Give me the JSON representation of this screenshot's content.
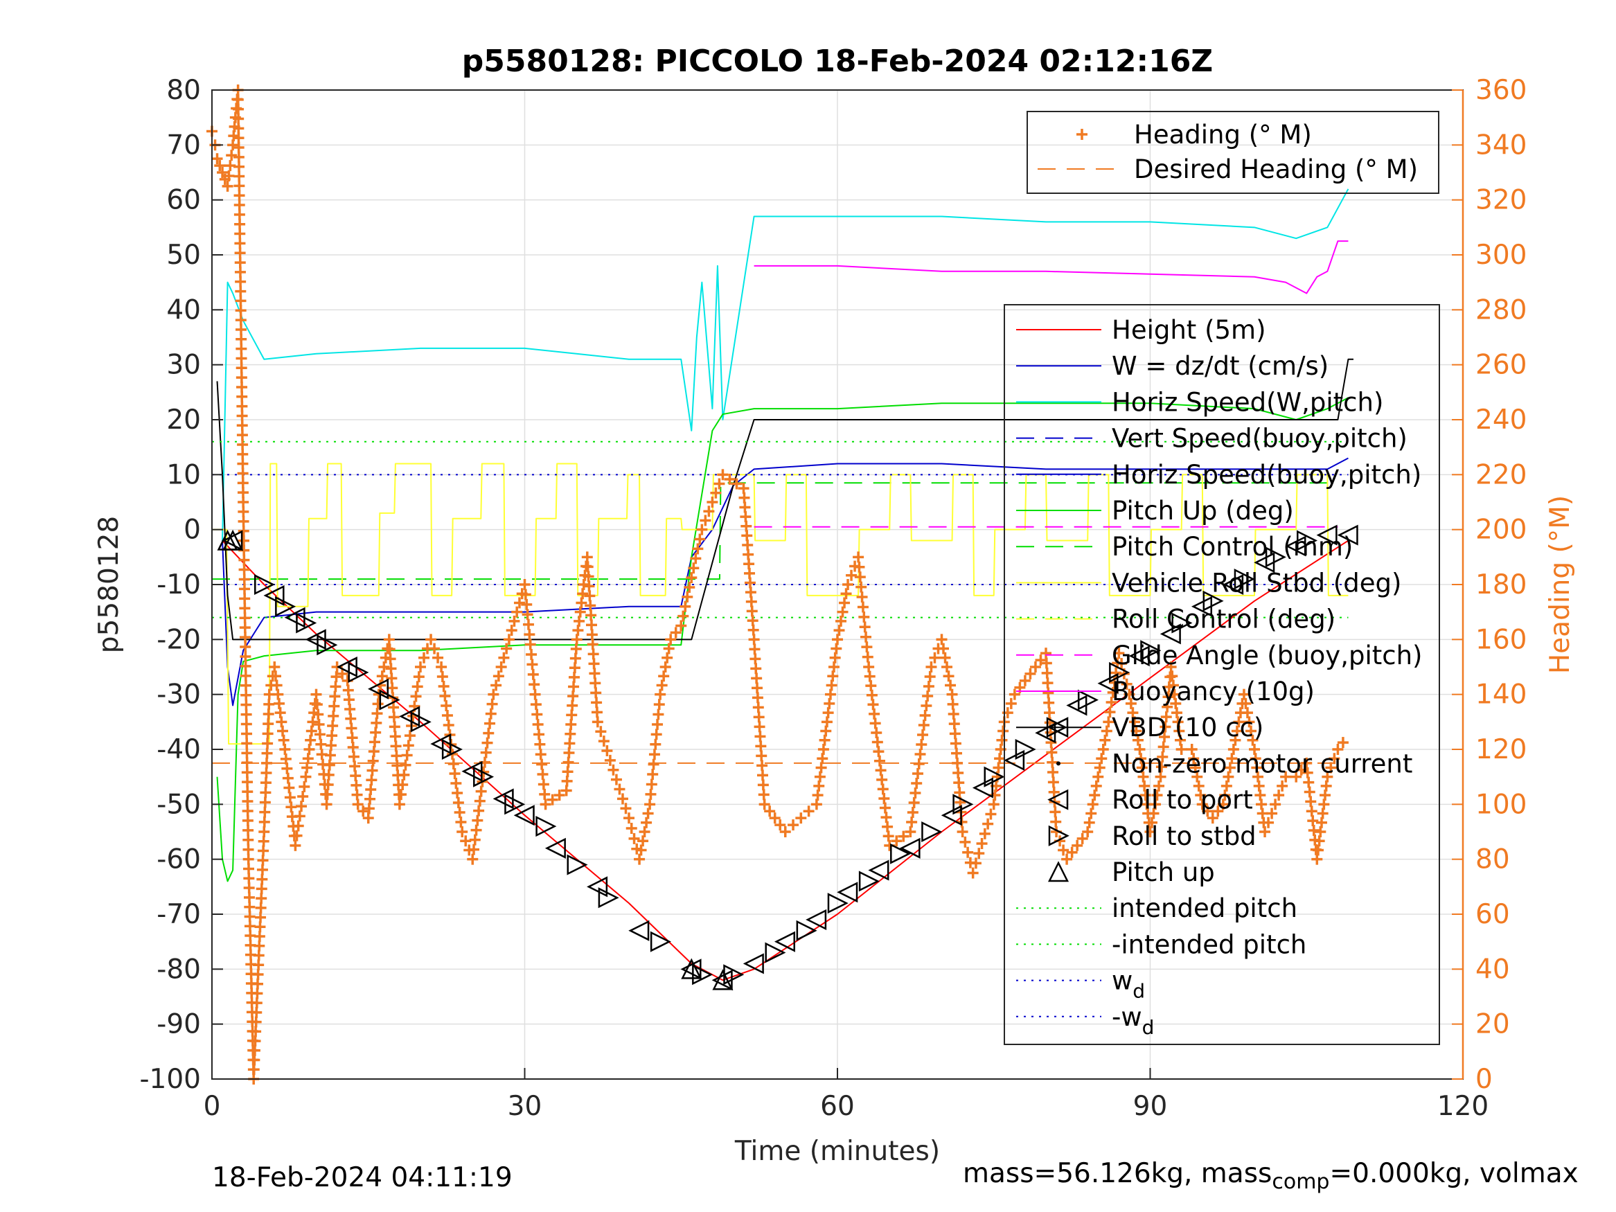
{
  "chart_data": {
    "type": "line",
    "title": "p5580128: PICCOLO 18-Feb-2024 02:12:16Z",
    "xlabel": "Time (minutes)",
    "ylabel": "p5580128",
    "ylabel_right": "Heading (°M)",
    "xlim": [
      0,
      120
    ],
    "ylim": [
      -100,
      80
    ],
    "ylim_right": [
      0,
      360
    ],
    "xticks": [
      0,
      30,
      60,
      90,
      120
    ],
    "yticks": [
      -100,
      -90,
      -80,
      -70,
      -60,
      -50,
      -40,
      -30,
      -20,
      -10,
      0,
      10,
      20,
      30,
      40,
      50,
      60,
      70,
      80
    ],
    "yticks_right": [
      0,
      20,
      40,
      60,
      80,
      100,
      120,
      140,
      160,
      180,
      200,
      220,
      240,
      260,
      280,
      300,
      320,
      340,
      360
    ],
    "grid": true,
    "colors": {
      "right_axis": "#f07a22",
      "heading": "#f07a22",
      "height": "#ff0000",
      "w": "#0000cc",
      "horiz_speed": "#00e5e5",
      "pitch": "#00dd00",
      "roll": "#ffff33",
      "buoyancy": "#ff00ff",
      "vbd": "#000000"
    },
    "legend_heading": {
      "position": "top-right",
      "entries": [
        "Heading (° M)",
        "Desired Heading (° M)"
      ]
    },
    "legend_main": {
      "position": "right",
      "entries": [
        "Height (5m)",
        "W = dz/dt (cm/s)",
        "Horiz Speed(W,pitch)",
        "Vert Speed(buoy,pitch)",
        "Horiz Speed(buoy,pitch)",
        "Pitch Up (deg)",
        "Pitch Control (mm)",
        "Vehicle Roll Stbd (deg)",
        "Roll Control (deg)",
        "Glide Angle (buoy,pitch)",
        "Buoyancy (10g)",
        "VBD (10 cc)",
        "Non-zero motor current",
        "Roll to port",
        "Roll to stbd",
        "Pitch up",
        "intended pitch",
        "-intended pitch",
        "w",
        "-w"
      ],
      "subscripts": {
        "18": "d",
        "19": "d"
      }
    },
    "series": [
      {
        "name": "Height (5m)",
        "x": [
          1,
          5,
          10,
          20,
          30,
          40,
          46,
          49,
          52,
          60,
          70,
          80,
          90,
          100,
          109
        ],
        "y": [
          -2,
          -10,
          -19,
          -35,
          -52,
          -68,
          -79,
          -82,
          -80,
          -70,
          -55,
          -41,
          -27,
          -13,
          -2
        ]
      },
      {
        "name": "W = dz/dt (cm/s)",
        "x": [
          1,
          1.5,
          2,
          3,
          5,
          10,
          20,
          30,
          40,
          45,
          46,
          48,
          50,
          52,
          60,
          70,
          80,
          90,
          100,
          107,
          109
        ],
        "y": [
          -2,
          -25,
          -32,
          -22,
          -16,
          -15,
          -15,
          -15,
          -14,
          -14,
          -5,
          0,
          8,
          11,
          12,
          12,
          11,
          11,
          11,
          11,
          13
        ]
      },
      {
        "name": "Horiz Speed(W,pitch)",
        "x": [
          1,
          1.5,
          2,
          3,
          5,
          10,
          20,
          30,
          40,
          45,
          46,
          46.5,
          47,
          48,
          48.5,
          49,
          52,
          60,
          70,
          80,
          90,
          100,
          104,
          107,
          109
        ],
        "y": [
          -2,
          45,
          43,
          38,
          31,
          32,
          33,
          33,
          31,
          31,
          18,
          35,
          45,
          22,
          48,
          20,
          57,
          57,
          57,
          56,
          56,
          55,
          53,
          55,
          62
        ]
      },
      {
        "name": "Pitch Up (deg)",
        "x": [
          0.5,
          1,
          1.5,
          2,
          2.5,
          3,
          5,
          10,
          20,
          30,
          40,
          45,
          46,
          48,
          49,
          52,
          60,
          70,
          80,
          90,
          100,
          104,
          107,
          109
        ],
        "y": [
          -45,
          -60,
          -64,
          -62,
          -30,
          -24,
          -23,
          -22,
          -22,
          -21,
          -21,
          -21,
          -5,
          18,
          21,
          22,
          22,
          23,
          23,
          23,
          22,
          20,
          22,
          24
        ]
      },
      {
        "name": "Pitch Control (mm)",
        "x": [
          0,
          48.7,
          48.8,
          108
        ],
        "y": [
          -9,
          -9,
          8.5,
          8.5
        ]
      },
      {
        "name": "Vehicle Roll Stbd (deg)",
        "x": [
          0,
          1.4,
          1.6,
          5.5,
          5.6,
          6.2,
          6.3,
          9.2,
          9.3,
          11,
          11.1,
          12.4,
          12.5,
          16,
          16.1,
          17.5,
          17.6,
          21,
          21.1,
          23,
          23.1,
          25.8,
          25.9,
          28,
          28.1,
          31,
          31.1,
          33,
          33.1,
          35,
          35.1,
          37,
          37.1,
          39.8,
          39.9,
          41,
          41.1,
          43.5,
          43.6,
          45,
          45.1,
          48,
          48.1,
          52,
          52.1,
          55,
          55.1,
          57,
          57.1,
          62,
          62.1,
          65,
          65.1,
          67,
          67.1,
          71,
          71.1,
          73,
          73.1,
          75,
          75.1,
          78,
          78.1,
          80,
          80.1,
          84,
          84.1,
          86,
          86.1,
          90,
          90.1,
          93,
          93.1,
          95,
          95.1,
          100,
          100.1,
          104,
          104.1,
          107,
          107.1,
          109
        ],
        "y": [
          0,
          0,
          -39,
          -39,
          12,
          12,
          -14,
          -14,
          2,
          2,
          12,
          12,
          -12,
          -12,
          3,
          3,
          12,
          12,
          -12,
          -12,
          2,
          2,
          12,
          12,
          -12,
          -12,
          2,
          2,
          12,
          12,
          -12,
          -12,
          2,
          2,
          10,
          10,
          -12,
          -12,
          2,
          2,
          0,
          0,
          10,
          10,
          -2,
          -2,
          10,
          10,
          -12,
          -12,
          0,
          0,
          10,
          10,
          -2,
          -2,
          10,
          10,
          -12,
          -12,
          0,
          0,
          10,
          10,
          -2,
          -2,
          10,
          10,
          -12,
          -12,
          0,
          0,
          10,
          10,
          -12,
          -12,
          0,
          0,
          10,
          10,
          -12,
          -12
        ]
      },
      {
        "name": "Glide Angle (buoy,pitch)",
        "x": [
          52,
          108
        ],
        "y": [
          0.5,
          0.5
        ]
      },
      {
        "name": "Buoyancy (10g)",
        "x": [
          52,
          60,
          70,
          80,
          90,
          100,
          103,
          105,
          106,
          107,
          108,
          109
        ],
        "y": [
          48,
          48,
          47,
          47,
          46.5,
          46,
          45,
          43,
          46,
          47,
          52.5,
          52.5
        ]
      },
      {
        "name": "VBD (10 cc)",
        "x": [
          0.5,
          1,
          1.5,
          2,
          46,
          50,
          52,
          108,
          109,
          109.5
        ],
        "y": [
          27,
          10,
          -12,
          -20,
          -20,
          8,
          20,
          20,
          31,
          31
        ]
      },
      {
        "name": "intended pitch",
        "x": [
          0,
          109
        ],
        "y": [
          16,
          16
        ]
      },
      {
        "name": "-intended pitch",
        "x": [
          0,
          109
        ],
        "y": [
          -16,
          -16
        ]
      },
      {
        "name": "w",
        "x": [
          0,
          109
        ],
        "y": [
          10,
          10
        ]
      },
      {
        "name": "-w",
        "x": [
          0,
          109
        ],
        "y": [
          -10,
          -10
        ]
      },
      {
        "name": "Desired Heading (° M)",
        "axis": "right",
        "x": [
          0,
          109
        ],
        "y": [
          115,
          115
        ]
      },
      {
        "name": "Heading (° M)",
        "axis": "right",
        "x": [
          0,
          0.3,
          0.5,
          1,
          1.5,
          2,
          2.5,
          3,
          3.5,
          4,
          5,
          5.5,
          6,
          7,
          8,
          9,
          10,
          11,
          12,
          13,
          14,
          15,
          16,
          17,
          18,
          20,
          21,
          22,
          24,
          25,
          27,
          30,
          31,
          32,
          34,
          35,
          36,
          37,
          40,
          41,
          42,
          43,
          44,
          45,
          47,
          49,
          51,
          52,
          53,
          55,
          58,
          59,
          60,
          61,
          62,
          63,
          65,
          67,
          69,
          70,
          71,
          72,
          73,
          75,
          76,
          77,
          79,
          80,
          81,
          82,
          84,
          86,
          87,
          88,
          89,
          90,
          91,
          92,
          93,
          94,
          95,
          96,
          97,
          99,
          100,
          101,
          103,
          104,
          105,
          106,
          107,
          108,
          109
        ],
        "y": [
          345,
          340,
          335,
          330,
          325,
          340,
          360,
          210,
          80,
          0,
          90,
          140,
          150,
          120,
          85,
          110,
          140,
          100,
          150,
          145,
          100,
          95,
          140,
          160,
          100,
          150,
          160,
          150,
          90,
          80,
          140,
          180,
          140,
          100,
          105,
          160,
          190,
          130,
          95,
          80,
          100,
          140,
          160,
          165,
          200,
          220,
          215,
          160,
          100,
          90,
          100,
          130,
          160,
          180,
          190,
          150,
          85,
          90,
          150,
          160,
          140,
          90,
          75,
          100,
          130,
          140,
          150,
          155,
          90,
          80,
          90,
          130,
          155,
          140,
          120,
          90,
          110,
          150,
          120,
          120,
          100,
          95,
          100,
          140,
          120,
          90,
          110,
          110,
          115,
          80,
          110,
          120,
          125
        ]
      },
      {
        "name": "Roll to port",
        "x": [
          2,
          6,
          8,
          10,
          13,
          16,
          19,
          22,
          25,
          28,
          30,
          33,
          37,
          41,
          46,
          49,
          52,
          55,
          58,
          61,
          64,
          67,
          71,
          74,
          77,
          80,
          83,
          86,
          89,
          92,
          95,
          98,
          101,
          104,
          107,
          109
        ],
        "y": [
          -2,
          -12,
          -16,
          -20,
          -25,
          -29,
          -34,
          -39,
          -44,
          -49,
          -52,
          -58,
          -65,
          -73,
          -80,
          -82,
          -79,
          -75,
          -71,
          -66,
          -62,
          -58,
          -52,
          -47,
          -42,
          -37,
          -32,
          -28,
          -23,
          -19,
          -14,
          -10,
          -6,
          -3,
          -1,
          -1
        ]
      },
      {
        "name": "Roll to stbd",
        "x": [
          5,
          7,
          9,
          11,
          14,
          17,
          20,
          23,
          26,
          29,
          32,
          35,
          38,
          43,
          47,
          50,
          54,
          57,
          60,
          63,
          66,
          69,
          72,
          75,
          78,
          81,
          84,
          87,
          90,
          93,
          96,
          99,
          102,
          105
        ],
        "y": [
          -10,
          -14,
          -17,
          -21,
          -26,
          -31,
          -35,
          -40,
          -45,
          -50,
          -54,
          -61,
          -67,
          -75,
          -81,
          -81,
          -77,
          -73,
          -68,
          -64,
          -59,
          -55,
          -50,
          -45,
          -40,
          -36,
          -31,
          -26,
          -22,
          -17,
          -13,
          -9,
          -5,
          -2
        ]
      },
      {
        "name": "Pitch up",
        "x": [
          1.5,
          2,
          46,
          49
        ],
        "y": [
          -2,
          -2,
          -80,
          -82
        ]
      }
    ],
    "footer_left": "18-Feb-2024 04:11:19",
    "footer_right": {
      "prefix": "mass=56.126kg, mass",
      "subscript": "comp",
      "suffix": "=0.000kg, volmax"
    }
  }
}
